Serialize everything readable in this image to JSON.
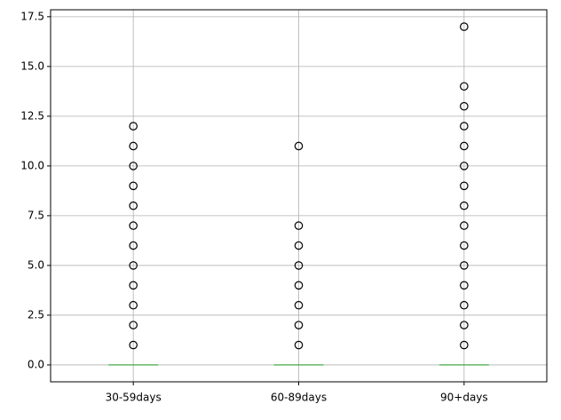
{
  "chart_data": {
    "type": "box",
    "categories": [
      "30-59days",
      "60-89days",
      "90+days"
    ],
    "boxes": [
      {
        "whislo": 0,
        "q1": 0,
        "median": 0,
        "q3": 0,
        "whishi": 0,
        "fliers": [
          1,
          2,
          3,
          4,
          5,
          6,
          7,
          8,
          9,
          10,
          11,
          12
        ]
      },
      {
        "whislo": 0,
        "q1": 0,
        "median": 0,
        "q3": 0,
        "whishi": 0,
        "fliers": [
          1,
          2,
          3,
          4,
          5,
          6,
          7,
          11
        ]
      },
      {
        "whislo": 0,
        "q1": 0,
        "median": 0,
        "q3": 0,
        "whishi": 0,
        "fliers": [
          1,
          2,
          3,
          4,
          5,
          6,
          7,
          8,
          9,
          10,
          11,
          12,
          13,
          14,
          17
        ]
      }
    ],
    "box_color": "#1f77b4",
    "median_color": "#2ca02c",
    "flier_color": "#000000",
    "xlim": [
      0.5,
      3.5
    ],
    "ylim": [
      -0.85,
      17.85
    ],
    "yticks": [
      {
        "value": 0,
        "label": "0.0"
      },
      {
        "value": 2.5,
        "label": "2.5"
      },
      {
        "value": 5,
        "label": "5.0"
      },
      {
        "value": 7.5,
        "label": "7.5"
      },
      {
        "value": 10,
        "label": "10.0"
      },
      {
        "value": 12.5,
        "label": "12.5"
      },
      {
        "value": 15,
        "label": "15.0"
      },
      {
        "value": 17.5,
        "label": "17.5"
      }
    ],
    "grid": true
  }
}
